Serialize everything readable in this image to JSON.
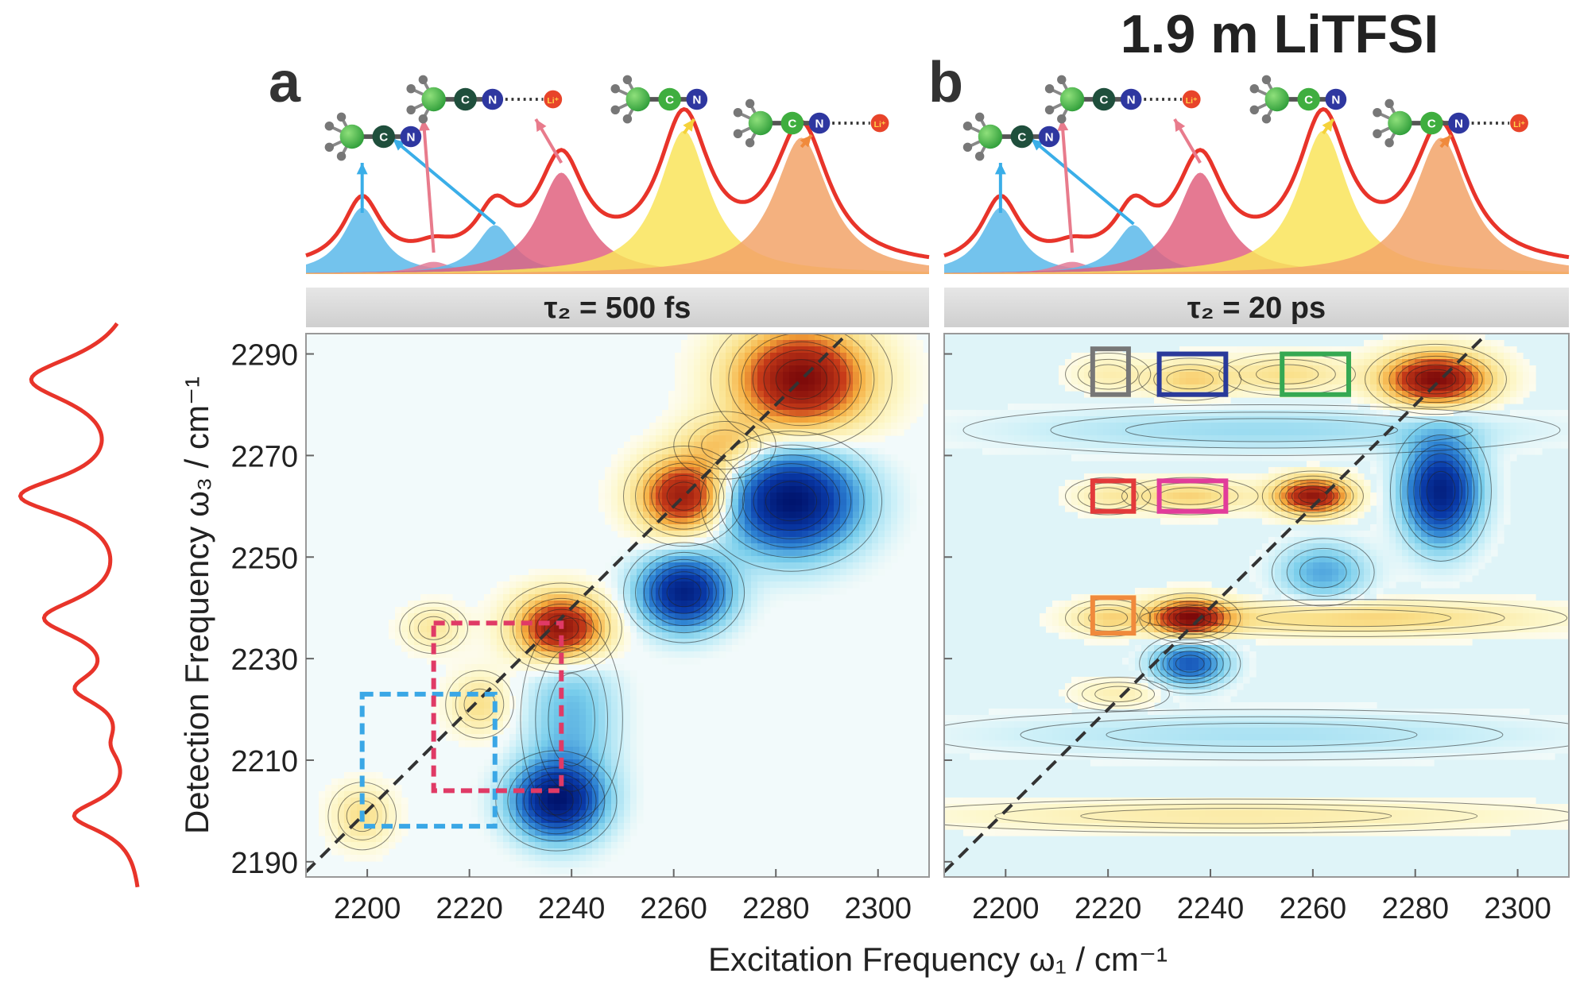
{
  "figure": {
    "title": "1.9 m LiTFSI",
    "xlabel": "Excitation Frequency ω₁ / cm⁻¹",
    "ylabel": "Detection Frequency ω₃ / cm⁻¹"
  },
  "chart_data": [
    {
      "type": "heatmap",
      "panel": "a",
      "header": "τ₂ = 500 fs",
      "xlim": [
        2188,
        2310
      ],
      "ylim": [
        2187,
        2294
      ],
      "xticks": [
        2200,
        2220,
        2240,
        2260,
        2280,
        2300
      ],
      "yticks": [
        2190,
        2210,
        2230,
        2250,
        2270,
        2290
      ],
      "diagonal": "dashed",
      "peaks": [
        {
          "x": 2285,
          "y": 2285,
          "amp": 1.0,
          "sx": 9,
          "sy": 7
        },
        {
          "x": 2262,
          "y": 2262,
          "amp": 0.9,
          "sx": 6,
          "sy": 5
        },
        {
          "x": 2238,
          "y": 2236,
          "amp": 1.0,
          "sx": 6,
          "sy": 4.5
        },
        {
          "x": 2199,
          "y": 2199,
          "amp": 0.25,
          "sx": 4,
          "sy": 4
        },
        {
          "x": 2213,
          "y": 2236,
          "amp": 0.2,
          "sx": 4,
          "sy": 3
        },
        {
          "x": 2222,
          "y": 2221,
          "amp": 0.25,
          "sx": 4,
          "sy": 4
        },
        {
          "x": 2270,
          "y": 2272,
          "amp": 0.35,
          "sx": 6,
          "sy": 4
        },
        {
          "x": 2283,
          "y": 2261,
          "amp": -1.0,
          "sx": 9,
          "sy": 7
        },
        {
          "x": 2262,
          "y": 2243,
          "amp": -0.9,
          "sx": 6,
          "sy": 5
        },
        {
          "x": 2237,
          "y": 2202,
          "amp": -0.9,
          "sx": 6,
          "sy": 5
        },
        {
          "x": 2240,
          "y": 2218,
          "amp": -0.3,
          "sx": 6,
          "sy": 12
        }
      ],
      "boxes": [
        {
          "color": "#3aa7e6",
          "style": "dashed",
          "x": [
            2199,
            2225
          ],
          "y": [
            2197,
            2223
          ]
        },
        {
          "color": "#e03a66",
          "style": "dashed",
          "x": [
            2213,
            2238
          ],
          "y": [
            2204,
            2237
          ]
        }
      ]
    },
    {
      "type": "heatmap",
      "panel": "b",
      "header": "τ₂ = 20 ps",
      "xlim": [
        2188,
        2310
      ],
      "ylim": [
        2187,
        2294
      ],
      "xticks": [
        2200,
        2220,
        2240,
        2260,
        2280,
        2300
      ],
      "yticks": [
        2190,
        2210,
        2230,
        2250,
        2270,
        2290
      ],
      "diagonal": "dashed",
      "peaks": [
        {
          "x": 2284,
          "y": 2285,
          "amp": 1.0,
          "sx": 7,
          "sy": 3.5
        },
        {
          "x": 2260,
          "y": 2262,
          "amp": 0.9,
          "sx": 5,
          "sy": 2.5
        },
        {
          "x": 2236,
          "y": 2238,
          "amp": 0.9,
          "sx": 5,
          "sy": 2.5
        },
        {
          "x": 2236,
          "y": 2285,
          "amp": 0.3,
          "sx": 6,
          "sy": 2.5
        },
        {
          "x": 2255,
          "y": 2286,
          "amp": 0.25,
          "sx": 8,
          "sy": 2.5
        },
        {
          "x": 2220,
          "y": 2286,
          "amp": 0.15,
          "sx": 5,
          "sy": 2.5
        },
        {
          "x": 2236,
          "y": 2262,
          "amp": 0.3,
          "sx": 8,
          "sy": 2.2
        },
        {
          "x": 2220,
          "y": 2262,
          "amp": 0.15,
          "sx": 5,
          "sy": 2.2
        },
        {
          "x": 2268,
          "y": 2238,
          "amp": 0.3,
          "sx": 25,
          "sy": 2.2
        },
        {
          "x": 2220,
          "y": 2238,
          "amp": 0.25,
          "sx": 5,
          "sy": 2.2
        },
        {
          "x": 2245,
          "y": 2199,
          "amp": 0.18,
          "sx": 40,
          "sy": 2
        },
        {
          "x": 2222,
          "y": 2223,
          "amp": 0.15,
          "sx": 6,
          "sy": 2
        },
        {
          "x": 2285,
          "y": 2263,
          "amp": -0.9,
          "sx": 5,
          "sy": 7
        },
        {
          "x": 2262,
          "y": 2247,
          "amp": -0.35,
          "sx": 6,
          "sy": 4
        },
        {
          "x": 2236,
          "y": 2229,
          "amp": -0.6,
          "sx": 5,
          "sy": 3
        },
        {
          "x": 2250,
          "y": 2275,
          "amp": -0.18,
          "sx": 35,
          "sy": 3
        },
        {
          "x": 2250,
          "y": 2215,
          "amp": -0.15,
          "sx": 40,
          "sy": 3
        }
      ],
      "boxes": [
        {
          "color": "#777777",
          "style": "solid",
          "x": [
            2217,
            2224
          ],
          "y": [
            2282,
            2291
          ]
        },
        {
          "color": "#2a3a9a",
          "style": "solid",
          "x": [
            2230,
            2243
          ],
          "y": [
            2282,
            2290
          ]
        },
        {
          "color": "#35a852",
          "style": "solid",
          "x": [
            2254,
            2267
          ],
          "y": [
            2282,
            2290
          ]
        },
        {
          "color": "#e33a3a",
          "style": "solid",
          "x": [
            2217,
            2225
          ],
          "y": [
            2259,
            2265
          ]
        },
        {
          "color": "#e23c9a",
          "style": "solid",
          "x": [
            2230,
            2243
          ],
          "y": [
            2259,
            2265
          ]
        },
        {
          "color": "#f08a3c",
          "style": "solid",
          "x": [
            2217,
            2225
          ],
          "y": [
            2235,
            2242
          ]
        }
      ]
    }
  ],
  "spectrum": {
    "peaks": [
      {
        "x": 2199,
        "height": 0.38,
        "width": 4.5,
        "color": "#5bb8ea"
      },
      {
        "x": 2213,
        "height": 0.07,
        "width": 4.5,
        "color": "#e37b96"
      },
      {
        "x": 2225,
        "height": 0.28,
        "width": 4.5,
        "color": "#5bb8ea"
      },
      {
        "x": 2238,
        "height": 0.58,
        "width": 5.5,
        "color": "#e0627f"
      },
      {
        "x": 2262,
        "height": 0.82,
        "width": 6,
        "color": "#f9e45b"
      },
      {
        "x": 2285,
        "height": 0.78,
        "width": 6.5,
        "color": "#f2a368"
      }
    ]
  },
  "molecules": {
    "carbon_label": "C",
    "nitrogen_label": "N",
    "lithium_label": "Li⁺"
  }
}
